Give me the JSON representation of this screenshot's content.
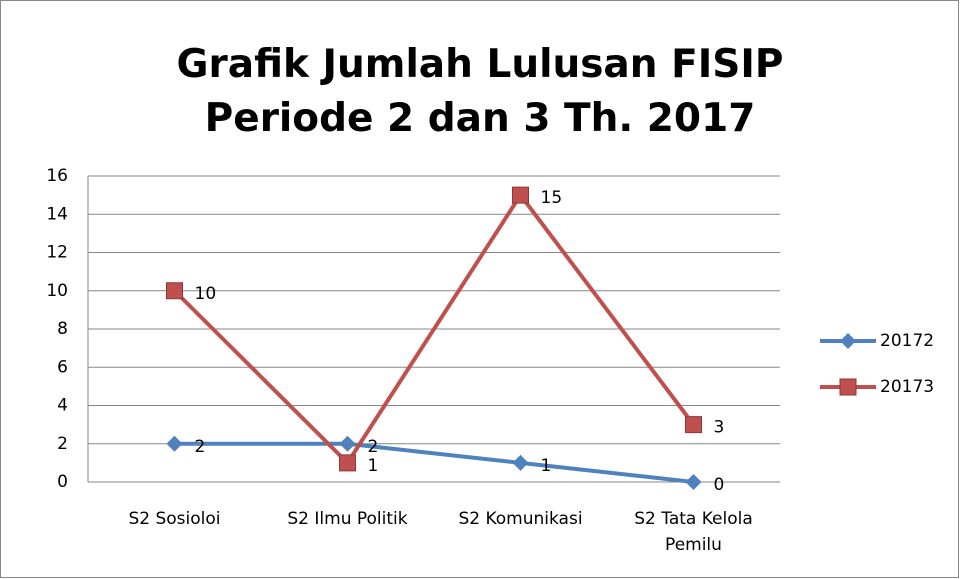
{
  "chart_data": {
    "type": "line",
    "title": "Grafik Jumlah Lulusan FISIP Periode 2 dan 3 Th. 2017",
    "categories": [
      "S2 Sosioloi",
      "S2 Ilmu Politik",
      "S2 Komunikasi",
      "S2 Tata Kelola Pemilu"
    ],
    "series": [
      {
        "name": "20172",
        "color": "#4f81bd",
        "marker": "diamond",
        "values": [
          2,
          2,
          1,
          0
        ]
      },
      {
        "name": "20173",
        "color": "#c0504d",
        "marker": "square",
        "values": [
          10,
          1,
          15,
          3
        ]
      }
    ],
    "ylim": [
      0,
      16
    ],
    "yticks": [
      0,
      2,
      4,
      6,
      8,
      10,
      12,
      14,
      16
    ],
    "grid": true,
    "legend": "right",
    "data_labels": true
  }
}
